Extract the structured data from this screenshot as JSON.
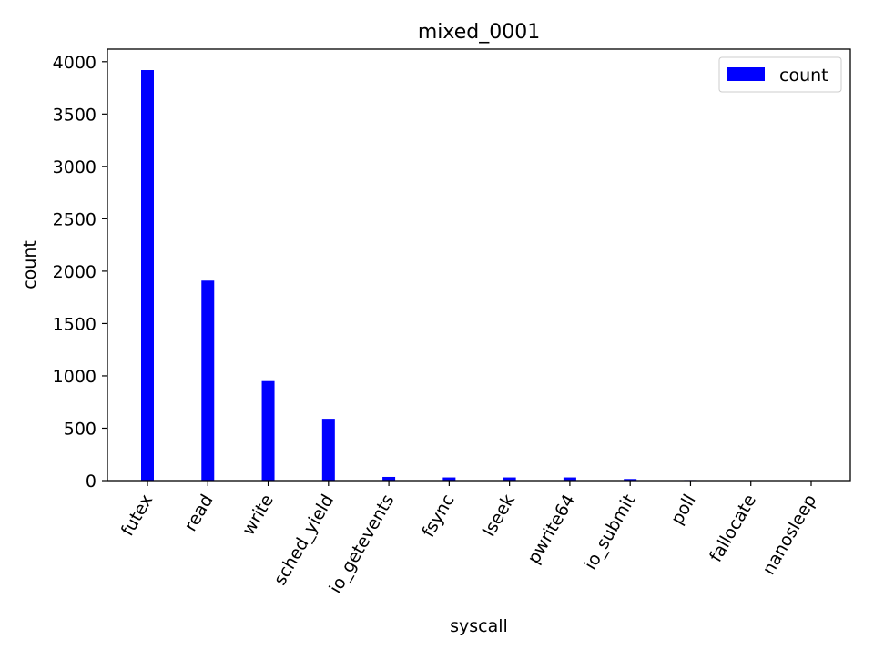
{
  "chart_data": {
    "type": "bar",
    "title": "mixed_0001",
    "xlabel": "syscall",
    "ylabel": "count",
    "categories": [
      "futex",
      "read",
      "write",
      "sched_yield",
      "io_getevents",
      "fsync",
      "lseek",
      "pwrite64",
      "io_submit",
      "poll",
      "fallocate",
      "nanosleep"
    ],
    "series": [
      {
        "name": "count",
        "color": "#0000ff",
        "values": [
          3920,
          1910,
          950,
          590,
          35,
          30,
          30,
          30,
          15,
          5,
          2,
          2
        ]
      }
    ],
    "ylim": [
      0,
      4120
    ],
    "yticks": [
      0,
      500,
      1000,
      1500,
      2000,
      2500,
      3000,
      3500,
      4000
    ],
    "grid": false,
    "legend_position": "top-right"
  }
}
